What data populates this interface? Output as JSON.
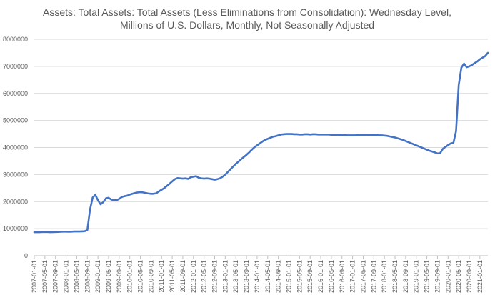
{
  "chart_data": {
    "type": "line",
    "title_lines": [
      "Assets: Total Assets: Total Assets (Less Eliminations from Consolidation): Wednesday Level,",
      "Millions of U.S. Dollars, Monthly, Not Seasonally Adjusted"
    ],
    "xlabel": "",
    "ylabel": "",
    "ylim": [
      0,
      8000000
    ],
    "yticks": [
      0,
      1000000,
      2000000,
      3000000,
      4000000,
      5000000,
      6000000,
      7000000,
      8000000
    ],
    "ytick_labels": [
      "0",
      "1000000",
      "2000000",
      "3000000",
      "4000000",
      "5000000",
      "6000000",
      "7000000",
      "8000000"
    ],
    "grid": true,
    "legend": "none",
    "start_month": "2007-01",
    "xtick_labels": [
      "2007-01-01",
      "2007-05-01",
      "2007-09-01",
      "2008-01-01",
      "2008-05-01",
      "2008-09-01",
      "2009-01-01",
      "2009-05-01",
      "2009-09-01",
      "2010-01-01",
      "2010-05-01",
      "2010-09-01",
      "2011-01-01",
      "2011-05-01",
      "2011-09-01",
      "2012-01-01",
      "2012-05-01",
      "2012-09-01",
      "2013-01-01",
      "2013-05-01",
      "2013-09-01",
      "2014-01-01",
      "2014-05-01",
      "2014-09-01",
      "2015-01-01",
      "2015-05-01",
      "2015-09-01",
      "2016-01-01",
      "2016-05-01",
      "2016-09-01",
      "2017-01-01",
      "2017-05-01",
      "2017-09-01",
      "2018-01-01",
      "2018-05-01",
      "2018-09-01",
      "2019-01-01",
      "2019-05-01",
      "2019-09-01",
      "2020-01-01",
      "2020-05-01",
      "2020-09-01",
      "2021-01-01"
    ],
    "series": [
      {
        "name": "Total Assets",
        "color": "#4472C4",
        "values": [
          870000,
          868000,
          870000,
          875000,
          880000,
          875000,
          870000,
          872000,
          875000,
          880000,
          885000,
          890000,
          890000,
          885000,
          890000,
          895000,
          895000,
          895000,
          900000,
          905000,
          950000,
          1700000,
          2150000,
          2250000,
          2050000,
          1900000,
          1980000,
          2120000,
          2140000,
          2080000,
          2050000,
          2050000,
          2100000,
          2170000,
          2200000,
          2220000,
          2260000,
          2290000,
          2320000,
          2340000,
          2350000,
          2340000,
          2320000,
          2300000,
          2290000,
          2290000,
          2310000,
          2380000,
          2440000,
          2500000,
          2580000,
          2660000,
          2750000,
          2830000,
          2870000,
          2860000,
          2850000,
          2860000,
          2840000,
          2900000,
          2920000,
          2940000,
          2880000,
          2860000,
          2850000,
          2860000,
          2850000,
          2830000,
          2810000,
          2830000,
          2860000,
          2920000,
          3000000,
          3100000,
          3200000,
          3300000,
          3400000,
          3480000,
          3570000,
          3650000,
          3730000,
          3820000,
          3920000,
          4010000,
          4080000,
          4150000,
          4220000,
          4280000,
          4320000,
          4360000,
          4400000,
          4420000,
          4450000,
          4480000,
          4490000,
          4500000,
          4500000,
          4500000,
          4490000,
          4490000,
          4480000,
          4480000,
          4490000,
          4490000,
          4480000,
          4490000,
          4490000,
          4480000,
          4480000,
          4480000,
          4480000,
          4480000,
          4470000,
          4470000,
          4470000,
          4460000,
          4460000,
          4460000,
          4450000,
          4450000,
          4450000,
          4450000,
          4460000,
          4460000,
          4460000,
          4460000,
          4470000,
          4460000,
          4460000,
          4460000,
          4450000,
          4450000,
          4440000,
          4430000,
          4410000,
          4390000,
          4370000,
          4340000,
          4310000,
          4280000,
          4240000,
          4200000,
          4160000,
          4120000,
          4080000,
          4040000,
          4000000,
          3960000,
          3920000,
          3880000,
          3850000,
          3820000,
          3780000,
          3790000,
          3950000,
          4020000,
          4090000,
          4150000,
          4170000,
          4600000,
          6300000,
          6950000,
          7100000,
          6970000,
          7000000,
          7050000,
          7120000,
          7180000,
          7260000,
          7320000,
          7380000,
          7500000
        ]
      }
    ]
  }
}
